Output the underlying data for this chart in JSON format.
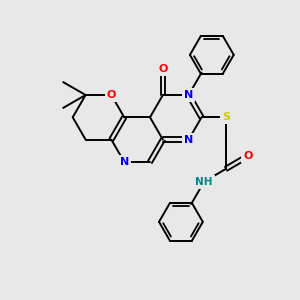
{
  "background_color": "#e8e8e8",
  "bond_color": "#000000",
  "atom_colors": {
    "N": "#0000ee",
    "O": "#ff0000",
    "S": "#cccc00",
    "NH": "#008888"
  }
}
